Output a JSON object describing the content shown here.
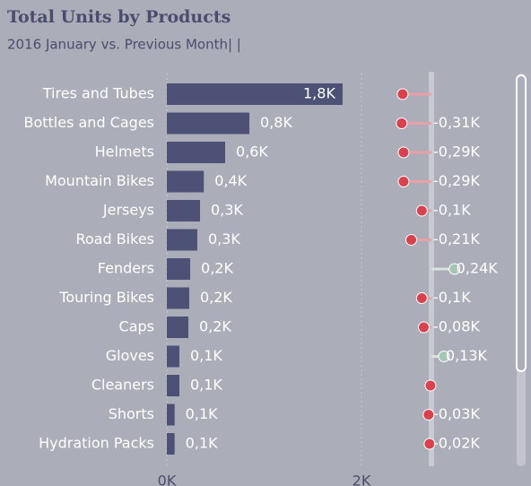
{
  "title": "Total Units by Products",
  "subtitle": "2016 January vs. Previous Month| |",
  "chart_data": [
    {
      "type": "bar",
      "orientation": "horizontal",
      "color": "#4e5176",
      "categories": [
        "Tires and Tubes",
        "Bottles and Cages",
        "Helmets",
        "Mountain Bikes",
        "Jerseys",
        "Road Bikes",
        "Fenders",
        "Touring Bikes",
        "Caps",
        "Gloves",
        "Cleaners",
        "Shorts",
        "Hydration Packs"
      ],
      "values": [
        1806,
        848,
        599,
        380,
        341,
        313,
        240,
        230,
        221,
        129,
        129,
        80,
        80
      ],
      "value_labels": [
        "1,8K",
        "0,8K",
        "0,6K",
        "0,4K",
        "0,3K",
        "0,3K",
        "0,2K",
        "0,2K",
        "0,2K",
        "0,1K",
        "0,1K",
        "0,1K",
        "0,1K"
      ],
      "xlim": [
        0,
        2000
      ],
      "xticks": [
        {
          "value": 0,
          "label": "0K"
        },
        {
          "value": 2000,
          "label": "2K"
        }
      ],
      "grid": true
    },
    {
      "type": "lollipop",
      "negative_color": "#d8424f",
      "positive_color": "#a6c7b6",
      "values": [
        -300,
        -310,
        -290,
        -290,
        -100,
        -210,
        240,
        -100,
        -80,
        130,
        -10,
        -30,
        -20
      ],
      "value_labels": [
        null,
        "-0,31K",
        "-0,29K",
        "-0,29K",
        "-0,1K",
        "-0,21K",
        "0,24K",
        "-0,1K",
        "-0,08K",
        "0,13K",
        null,
        "-0,03K",
        "-0,02K"
      ],
      "xlim": [
        -1000,
        1000
      ]
    }
  ]
}
